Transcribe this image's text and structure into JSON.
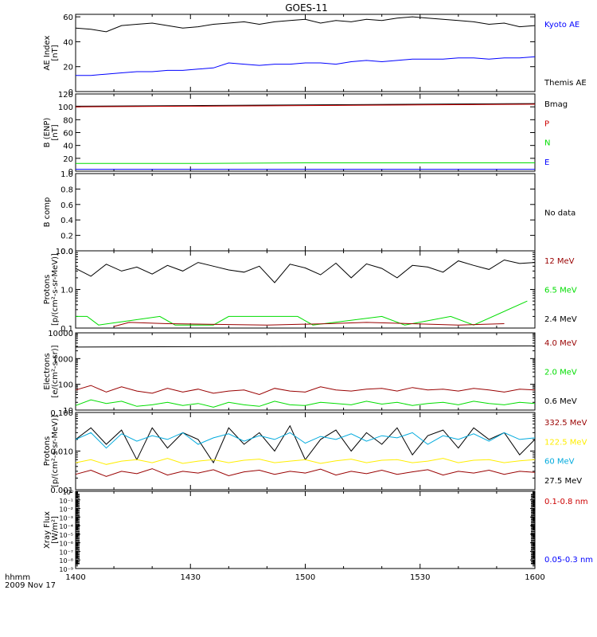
{
  "title": "GOES-11",
  "time_axis": {
    "label_line1": "hhmm",
    "label_line2": "2009 Nov 17",
    "tick_labels": [
      "1400",
      "1430",
      "1500",
      "1530",
      "1600"
    ]
  },
  "colors": {
    "black": "#000000",
    "blue": "#0000ff",
    "red": "#cc0000",
    "darkred": "#990000",
    "green": "#00dd00",
    "yellow": "#ffee00",
    "cyan": "#00aadd"
  },
  "panels": [
    {
      "id": "ae",
      "ylabel": [
        "AE Index",
        "[nT]"
      ],
      "legend": [
        {
          "text": "Kyoto AE",
          "color": "#0000ff"
        },
        {
          "text": "Themis AE",
          "color": "#000000"
        }
      ]
    },
    {
      "id": "b_enp",
      "ylabel": [
        "B (ENP)",
        "[nT]"
      ],
      "legend": [
        {
          "text": "Bmag",
          "color": "#000000"
        },
        {
          "text": "P",
          "color": "#cc0000"
        },
        {
          "text": "N",
          "color": "#00dd00"
        },
        {
          "text": "E",
          "color": "#0000ff"
        }
      ]
    },
    {
      "id": "b_comp",
      "ylabel": [
        "B comp"
      ],
      "legend": [
        {
          "text": "No data",
          "color": "#000000"
        }
      ]
    },
    {
      "id": "protons_low",
      "ylabel": [
        "Protons",
        "[p/(cm²-s-sr-MeV)]"
      ],
      "legend": [
        {
          "text": "12 MeV",
          "color": "#990000"
        },
        {
          "text": "6.5 MeV",
          "color": "#00dd00"
        },
        {
          "text": "2.4 MeV",
          "color": "#000000"
        }
      ]
    },
    {
      "id": "electrons",
      "ylabel": [
        "Electrons",
        "[e/(cm²-s-sr)]"
      ],
      "legend": [
        {
          "text": "4.0 MeV",
          "color": "#990000"
        },
        {
          "text": "2.0 MeV",
          "color": "#00dd00"
        },
        {
          "text": "0.6 MeV",
          "color": "#000000"
        }
      ]
    },
    {
      "id": "protons_high",
      "ylabel": [
        "Protons",
        "[p/(cm²-s-sr-MeV)]"
      ],
      "legend": [
        {
          "text": "332.5 MeV",
          "color": "#990000"
        },
        {
          "text": "122.5 MeV",
          "color": "#ffee00"
        },
        {
          "text": "60 MeV",
          "color": "#00aadd"
        },
        {
          "text": "27.5 MeV",
          "color": "#000000"
        }
      ]
    },
    {
      "id": "xray",
      "ylabel": [
        "Xray Flux",
        "[W/m²]"
      ],
      "legend": [
        {
          "text": "0.1-0.8 nm",
          "color": "#cc0000"
        },
        {
          "text": "0.05-0.3 nm",
          "color": "#0000ff"
        }
      ]
    }
  ],
  "chart_data": [
    {
      "type": "line",
      "panel": "ae",
      "scale": "linear",
      "ylim": [
        0,
        62
      ],
      "yticks": [
        0,
        20,
        40,
        60
      ],
      "ytick_labels": [
        "0",
        "20",
        "40",
        "60"
      ],
      "xlim_minutes": [
        0,
        120
      ],
      "series": [
        {
          "name": "Themis AE",
          "color": "#000000",
          "x": [
            0,
            4,
            8,
            12,
            16,
            20,
            24,
            28,
            32,
            36,
            40,
            44,
            48,
            52,
            56,
            60,
            64,
            68,
            72,
            76,
            80,
            84,
            88,
            92,
            96,
            100,
            104,
            108,
            112,
            116,
            120
          ],
          "y": [
            51,
            50,
            48,
            53,
            54,
            55,
            53,
            51,
            52,
            54,
            55,
            56,
            54,
            56,
            57,
            58,
            55,
            57,
            56,
            58,
            57,
            59,
            60,
            59,
            58,
            57,
            56,
            54,
            55,
            52,
            53
          ]
        },
        {
          "name": "Kyoto AE",
          "color": "#0000ff",
          "x": [
            0,
            4,
            8,
            12,
            16,
            20,
            24,
            28,
            32,
            36,
            40,
            44,
            48,
            52,
            56,
            60,
            64,
            68,
            72,
            76,
            80,
            84,
            88,
            92,
            96,
            100,
            104,
            108,
            112,
            116,
            120
          ],
          "y": [
            13,
            13,
            14,
            15,
            16,
            16,
            17,
            17,
            18,
            19,
            23,
            22,
            21,
            22,
            22,
            23,
            23,
            22,
            24,
            25,
            24,
            25,
            26,
            26,
            26,
            27,
            27,
            26,
            27,
            27,
            28
          ]
        }
      ]
    },
    {
      "type": "line",
      "panel": "b_enp",
      "scale": "linear",
      "ylim": [
        0,
        120
      ],
      "yticks": [
        0,
        20,
        40,
        60,
        80,
        100,
        120
      ],
      "ytick_labels": [
        "0",
        "20",
        "40",
        "60",
        "80",
        "100",
        "120"
      ],
      "xlim_minutes": [
        0,
        120
      ],
      "series": [
        {
          "name": "Bmag",
          "color": "#000000",
          "x": [
            0,
            30,
            60,
            90,
            120
          ],
          "y": [
            101,
            102,
            103,
            104,
            105
          ]
        },
        {
          "name": "P",
          "color": "#cc0000",
          "x": [
            0,
            30,
            60,
            90,
            120
          ],
          "y": [
            100,
            101,
            102,
            103,
            104
          ]
        },
        {
          "name": "N",
          "color": "#00dd00",
          "x": [
            0,
            30,
            60,
            90,
            120
          ],
          "y": [
            12,
            12,
            13,
            13,
            13
          ]
        },
        {
          "name": "E",
          "color": "#0000ff",
          "x": [
            0,
            30,
            60,
            90,
            120
          ],
          "y": [
            3,
            3,
            3,
            3,
            3
          ]
        }
      ]
    },
    {
      "type": "line",
      "panel": "b_comp",
      "scale": "linear",
      "ylim": [
        0,
        1
      ],
      "yticks": [
        0,
        0.2,
        0.4,
        0.6,
        0.8,
        1
      ],
      "ytick_labels": [
        "0.0",
        "0.2",
        "0.4",
        "0.6",
        "0.8",
        "1.0"
      ],
      "xlim_minutes": [
        0,
        120
      ],
      "series": []
    },
    {
      "type": "line",
      "panel": "protons_low",
      "scale": "log",
      "ylim": [
        0.1,
        10
      ],
      "yticks": [
        0.1,
        1,
        10
      ],
      "ytick_labels": [
        "0.1",
        "1.0",
        "10.0"
      ],
      "xlim_minutes": [
        0,
        120
      ],
      "series": [
        {
          "name": "2.4 MeV",
          "color": "#000000",
          "x": [
            0,
            4,
            8,
            12,
            16,
            20,
            24,
            28,
            32,
            36,
            40,
            44,
            48,
            52,
            56,
            60,
            64,
            68,
            72,
            76,
            80,
            84,
            88,
            92,
            96,
            100,
            104,
            108,
            112,
            116,
            120
          ],
          "y": [
            3.5,
            2.2,
            4.5,
            3.0,
            3.8,
            2.5,
            4.2,
            3.0,
            5.0,
            4.0,
            3.2,
            2.8,
            4.0,
            1.5,
            4.5,
            3.6,
            2.4,
            4.8,
            2.0,
            4.6,
            3.5,
            2.0,
            4.2,
            3.8,
            2.8,
            5.5,
            4.2,
            3.3,
            5.8,
            4.7,
            5.0
          ]
        },
        {
          "name": "6.5 MeV",
          "color": "#00dd00",
          "x": [
            0,
            3,
            6,
            22,
            26,
            36,
            40,
            58,
            62,
            80,
            86,
            98,
            104,
            118
          ],
          "y": [
            0.2,
            0.2,
            0.12,
            0.2,
            0.12,
            0.12,
            0.2,
            0.2,
            0.12,
            0.2,
            0.12,
            0.2,
            0.12,
            0.5
          ]
        },
        {
          "name": "12 MeV",
          "color": "#990000",
          "x": [
            10,
            14,
            24,
            50,
            66,
            76,
            100,
            112
          ],
          "y": [
            0.11,
            0.14,
            0.13,
            0.12,
            0.13,
            0.14,
            0.12,
            0.13
          ]
        }
      ]
    },
    {
      "type": "line",
      "panel": "electrons",
      "scale": "log",
      "ylim": [
        10,
        10000
      ],
      "yticks": [
        10,
        100,
        1000,
        10000
      ],
      "ytick_labels": [
        "10",
        "100",
        "1000",
        "10000"
      ],
      "xlim_minutes": [
        0,
        120
      ],
      "series": [
        {
          "name": "0.6 MeV",
          "color": "#000000",
          "x": [
            0,
            30,
            60,
            90,
            120
          ],
          "y": [
            2800,
            2900,
            3000,
            3050,
            3100
          ]
        },
        {
          "name": "4.0 MeV",
          "color": "#990000",
          "x": [
            0,
            4,
            8,
            12,
            16,
            20,
            24,
            28,
            32,
            36,
            40,
            44,
            48,
            52,
            56,
            60,
            64,
            68,
            72,
            76,
            80,
            84,
            88,
            92,
            96,
            100,
            104,
            108,
            112,
            116,
            120
          ],
          "y": [
            60,
            90,
            50,
            80,
            55,
            45,
            70,
            50,
            65,
            45,
            55,
            60,
            40,
            70,
            55,
            50,
            80,
            60,
            55,
            65,
            70,
            55,
            75,
            60,
            65,
            55,
            70,
            60,
            50,
            65,
            60
          ]
        },
        {
          "name": "2.0 MeV",
          "color": "#00dd00",
          "x": [
            0,
            4,
            8,
            12,
            16,
            20,
            24,
            28,
            32,
            36,
            40,
            44,
            48,
            52,
            56,
            60,
            64,
            68,
            72,
            76,
            80,
            84,
            88,
            92,
            96,
            100,
            104,
            108,
            112,
            116,
            120
          ],
          "y": [
            15,
            25,
            18,
            22,
            14,
            16,
            20,
            15,
            18,
            13,
            20,
            16,
            14,
            22,
            16,
            15,
            20,
            18,
            16,
            22,
            17,
            20,
            15,
            18,
            20,
            16,
            22,
            18,
            16,
            20,
            18
          ]
        }
      ]
    },
    {
      "type": "line",
      "panel": "protons_high",
      "scale": "log",
      "ylim": [
        0.001,
        0.1
      ],
      "yticks": [
        0.001,
        0.01,
        0.1
      ],
      "ytick_labels": [
        "0.001",
        "0.010",
        "0.100"
      ],
      "xlim_minutes": [
        0,
        120
      ],
      "series": [
        {
          "name": "27.5 MeV",
          "color": "#000000",
          "x": [
            0,
            4,
            8,
            12,
            16,
            20,
            24,
            28,
            32,
            36,
            40,
            44,
            48,
            52,
            56,
            60,
            64,
            68,
            72,
            76,
            80,
            84,
            88,
            92,
            96,
            100,
            104,
            108,
            112,
            116,
            120
          ],
          "y": [
            0.02,
            0.04,
            0.015,
            0.035,
            0.006,
            0.04,
            0.012,
            0.03,
            0.02,
            0.005,
            0.04,
            0.015,
            0.03,
            0.01,
            0.045,
            0.006,
            0.02,
            0.035,
            0.01,
            0.03,
            0.015,
            0.04,
            0.008,
            0.025,
            0.035,
            0.012,
            0.04,
            0.02,
            0.03,
            0.008,
            0.02
          ]
        },
        {
          "name": "60 MeV",
          "color": "#00aadd",
          "x": [
            0,
            4,
            8,
            12,
            16,
            20,
            24,
            28,
            32,
            36,
            40,
            44,
            48,
            52,
            56,
            60,
            64,
            68,
            72,
            76,
            80,
            84,
            88,
            92,
            96,
            100,
            104,
            108,
            112,
            116,
            120
          ],
          "y": [
            0.02,
            0.03,
            0.012,
            0.028,
            0.018,
            0.025,
            0.02,
            0.03,
            0.015,
            0.022,
            0.028,
            0.018,
            0.025,
            0.02,
            0.03,
            0.016,
            0.024,
            0.02,
            0.028,
            0.018,
            0.025,
            0.022,
            0.03,
            0.015,
            0.025,
            0.02,
            0.028,
            0.018,
            0.03,
            0.02,
            0.022
          ]
        },
        {
          "name": "122.5 MeV",
          "color": "#ffee00",
          "x": [
            0,
            4,
            8,
            12,
            16,
            20,
            24,
            28,
            32,
            36,
            40,
            44,
            48,
            52,
            56,
            60,
            64,
            68,
            72,
            76,
            80,
            84,
            88,
            92,
            96,
            100,
            104,
            108,
            112,
            116,
            120
          ],
          "y": [
            0.005,
            0.006,
            0.0045,
            0.0055,
            0.006,
            0.005,
            0.0065,
            0.0048,
            0.0055,
            0.006,
            0.005,
            0.0058,
            0.0062,
            0.005,
            0.0055,
            0.006,
            0.0048,
            0.0056,
            0.0062,
            0.005,
            0.0058,
            0.006,
            0.005,
            0.0055,
            0.0065,
            0.005,
            0.0058,
            0.006,
            0.005,
            0.0056,
            0.006
          ]
        },
        {
          "name": "332.5 MeV",
          "color": "#990000",
          "x": [
            0,
            4,
            8,
            12,
            16,
            20,
            24,
            28,
            32,
            36,
            40,
            44,
            48,
            52,
            56,
            60,
            64,
            68,
            72,
            76,
            80,
            84,
            88,
            92,
            96,
            100,
            104,
            108,
            112,
            116,
            120
          ],
          "y": [
            0.0025,
            0.0032,
            0.0022,
            0.003,
            0.0026,
            0.0035,
            0.0024,
            0.003,
            0.0027,
            0.0033,
            0.0023,
            0.0029,
            0.0032,
            0.0025,
            0.003,
            0.0027,
            0.0034,
            0.0024,
            0.003,
            0.0026,
            0.0032,
            0.0025,
            0.0029,
            0.0033,
            0.0024,
            0.003,
            0.0027,
            0.0032,
            0.0025,
            0.003,
            0.0028
          ]
        }
      ]
    },
    {
      "type": "line",
      "panel": "xray",
      "scale": "log",
      "ylim": [
        1e-09,
        1
      ],
      "yticks": [
        1,
        0.1,
        0.01,
        0.001,
        0.0001,
        1e-05,
        1e-06,
        1e-07,
        1e-08,
        1e-09
      ],
      "ytick_labels": [
        "10⁰",
        "10⁻¹",
        "10⁻²",
        "10⁻³",
        "10⁻⁴",
        "10⁻⁵",
        "10⁻⁶",
        "10⁻⁷",
        "10⁻⁸",
        "10⁻⁹"
      ],
      "xlim_minutes": [
        0,
        120
      ],
      "series": []
    }
  ]
}
